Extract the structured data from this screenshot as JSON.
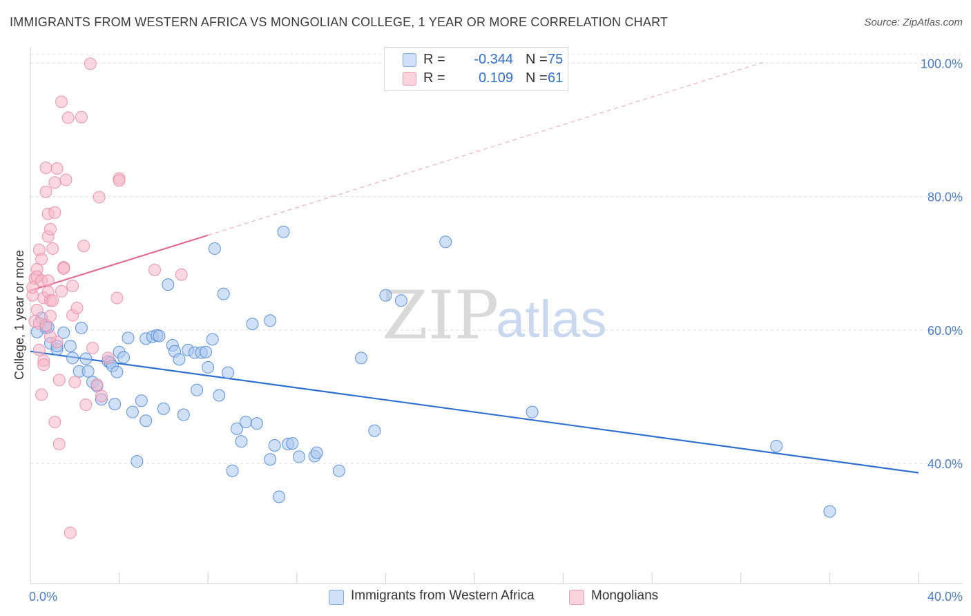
{
  "title": "IMMIGRANTS FROM WESTERN AFRICA VS MONGOLIAN COLLEGE, 1 YEAR OR MORE CORRELATION CHART",
  "source": "Source: ZipAtlas.com",
  "watermark": {
    "zip": "ZIP",
    "atlas": "atlas"
  },
  "legend_top": [
    {
      "r_label": "R =",
      "r_value": "-0.344",
      "n_label": "N =",
      "n_value": "75",
      "color": "#a9c6ef"
    },
    {
      "r_label": "R =",
      "r_value": "0.109",
      "n_label": "N =",
      "n_value": "61",
      "color": "#f6b6c9"
    }
  ],
  "legend_bottom": [
    {
      "label": "Immigrants from Western Africa",
      "color": "#a9c6ef"
    },
    {
      "label": "Mongolians",
      "color": "#f6b6c9"
    }
  ],
  "chart_data": {
    "type": "scatter",
    "title": "IMMIGRANTS FROM WESTERN AFRICA VS MONGOLIAN COLLEGE, 1 YEAR OR MORE CORRELATION CHART",
    "xlabel": "",
    "ylabel": "College, 1 year or more",
    "xlim": [
      0,
      40
    ],
    "ylim": [
      22,
      102
    ],
    "x_tick_labels": [
      "0.0%",
      "40.0%"
    ],
    "y_ticks": [
      40,
      60,
      80,
      100
    ],
    "y_tick_labels": [
      "40.0%",
      "60.0%",
      "80.0%",
      "100.0%"
    ],
    "grid": true,
    "legend_position": "bottom",
    "series": [
      {
        "name": "Immigrants from Western Africa",
        "color": "#4a86d8",
        "fill": "#a9c6ef",
        "trend": {
          "x": [
            0,
            40
          ],
          "y": [
            56.8,
            38.6
          ],
          "style": "solid",
          "color": "#2f6fd0"
        },
        "points": [
          [
            0.3,
            59.7
          ],
          [
            0.5,
            61.8
          ],
          [
            0.7,
            60.3
          ],
          [
            0.8,
            60.4
          ],
          [
            0.9,
            58.0
          ],
          [
            1.2,
            57.1
          ],
          [
            1.2,
            57.6
          ],
          [
            1.5,
            59.6
          ],
          [
            1.8,
            57.6
          ],
          [
            1.9,
            55.8
          ],
          [
            2.2,
            53.8
          ],
          [
            2.3,
            60.3
          ],
          [
            2.5,
            55.7
          ],
          [
            2.6,
            53.8
          ],
          [
            2.8,
            52.2
          ],
          [
            3.0,
            51.6
          ],
          [
            3.2,
            49.6
          ],
          [
            3.5,
            55.3
          ],
          [
            3.6,
            55.1
          ],
          [
            3.7,
            54.6
          ],
          [
            3.8,
            48.9
          ],
          [
            3.9,
            53.7
          ],
          [
            4.0,
            56.7
          ],
          [
            4.2,
            55.9
          ],
          [
            4.4,
            58.8
          ],
          [
            4.6,
            47.7
          ],
          [
            4.8,
            40.3
          ],
          [
            5.0,
            49.4
          ],
          [
            5.2,
            46.4
          ],
          [
            5.2,
            58.7
          ],
          [
            5.5,
            59.0
          ],
          [
            5.7,
            59.2
          ],
          [
            5.8,
            59.1
          ],
          [
            6.0,
            48.2
          ],
          [
            6.2,
            66.8
          ],
          [
            6.4,
            57.7
          ],
          [
            6.5,
            56.8
          ],
          [
            6.7,
            55.6
          ],
          [
            6.9,
            47.3
          ],
          [
            7.1,
            57.0
          ],
          [
            7.4,
            56.6
          ],
          [
            7.5,
            51.0
          ],
          [
            7.7,
            56.6
          ],
          [
            7.9,
            56.7
          ],
          [
            8.0,
            54.4
          ],
          [
            8.2,
            58.6
          ],
          [
            8.3,
            72.2
          ],
          [
            8.5,
            50.2
          ],
          [
            8.7,
            65.4
          ],
          [
            8.9,
            53.6
          ],
          [
            9.1,
            38.9
          ],
          [
            9.3,
            45.2
          ],
          [
            9.5,
            43.3
          ],
          [
            9.7,
            46.2
          ],
          [
            10.0,
            60.9
          ],
          [
            10.2,
            46.0
          ],
          [
            10.8,
            61.4
          ],
          [
            10.8,
            40.6
          ],
          [
            11.0,
            42.7
          ],
          [
            11.2,
            35.0
          ],
          [
            11.4,
            74.7
          ],
          [
            11.6,
            42.9
          ],
          [
            11.8,
            43.0
          ],
          [
            12.1,
            41.0
          ],
          [
            12.8,
            41.1
          ],
          [
            12.9,
            41.6
          ],
          [
            13.9,
            38.9
          ],
          [
            14.9,
            55.8
          ],
          [
            15.5,
            44.9
          ],
          [
            16.0,
            65.2
          ],
          [
            16.7,
            64.4
          ],
          [
            18.7,
            73.2
          ],
          [
            22.6,
            47.7
          ],
          [
            33.6,
            42.6
          ],
          [
            36.0,
            32.8
          ]
        ]
      },
      {
        "name": "Mongolians",
        "color": "#e88aa7",
        "fill": "#f6b6c9",
        "trend": {
          "x": [
            0,
            8
          ],
          "y": [
            65.9,
            74.2
          ],
          "style": "solid",
          "color": "#e36b93",
          "extension": {
            "x": [
              8,
              33
            ],
            "y": [
              74.2,
              100.1
            ],
            "style": "dashed"
          }
        },
        "points": [
          [
            0.1,
            65.2
          ],
          [
            0.1,
            66.4
          ],
          [
            0.2,
            67.7
          ],
          [
            0.2,
            61.3
          ],
          [
            0.3,
            69.1
          ],
          [
            0.3,
            68.0
          ],
          [
            0.4,
            72.0
          ],
          [
            0.4,
            61.0
          ],
          [
            0.5,
            70.6
          ],
          [
            0.5,
            67.4
          ],
          [
            0.5,
            50.3
          ],
          [
            0.6,
            64.8
          ],
          [
            0.6,
            55.4
          ],
          [
            0.6,
            54.8
          ],
          [
            0.7,
            84.3
          ],
          [
            0.7,
            80.7
          ],
          [
            0.7,
            60.7
          ],
          [
            0.8,
            77.4
          ],
          [
            0.8,
            74.0
          ],
          [
            0.8,
            67.4
          ],
          [
            0.8,
            65.7
          ],
          [
            0.9,
            75.1
          ],
          [
            0.9,
            64.4
          ],
          [
            0.9,
            62.1
          ],
          [
            1.0,
            72.2
          ],
          [
            1.0,
            64.4
          ],
          [
            1.1,
            82.1
          ],
          [
            1.1,
            77.6
          ],
          [
            1.1,
            46.2
          ],
          [
            1.2,
            84.2
          ],
          [
            1.2,
            58.2
          ],
          [
            1.3,
            52.5
          ],
          [
            1.3,
            42.9
          ],
          [
            1.4,
            94.2
          ],
          [
            1.4,
            65.8
          ],
          [
            1.5,
            69.4
          ],
          [
            1.5,
            69.2
          ],
          [
            1.6,
            82.5
          ],
          [
            1.7,
            91.8
          ],
          [
            1.8,
            29.6
          ],
          [
            1.9,
            66.6
          ],
          [
            1.9,
            62.2
          ],
          [
            2.0,
            52.2
          ],
          [
            2.1,
            63.3
          ],
          [
            2.3,
            91.9
          ],
          [
            2.4,
            72.6
          ],
          [
            2.5,
            48.8
          ],
          [
            2.7,
            99.9
          ],
          [
            2.8,
            57.3
          ],
          [
            3.0,
            51.8
          ],
          [
            3.1,
            79.9
          ],
          [
            3.2,
            50.1
          ],
          [
            3.5,
            55.8
          ],
          [
            3.9,
            64.8
          ],
          [
            4.0,
            82.7
          ],
          [
            4.0,
            82.4
          ],
          [
            5.6,
            69.0
          ],
          [
            6.8,
            68.3
          ],
          [
            0.4,
            57.0
          ],
          [
            0.9,
            59.0
          ],
          [
            0.3,
            63.0
          ]
        ]
      }
    ]
  }
}
